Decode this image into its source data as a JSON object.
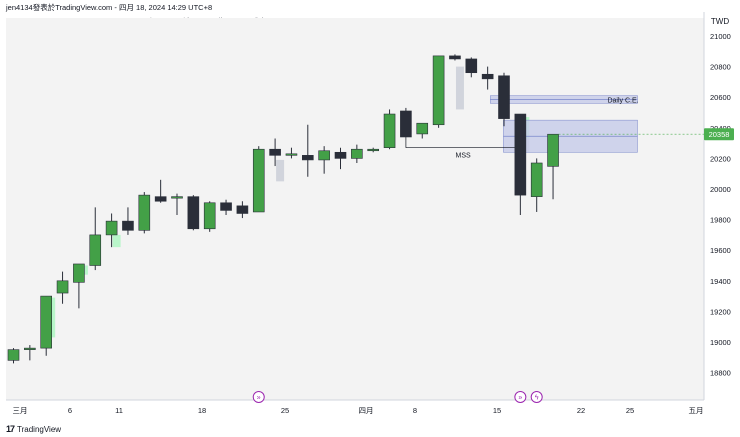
{
  "header": {
    "published": "jen4134發表於TradingView.com - 四月 18, 2024 14:29 UTC+8",
    "symbol_line": "TAIEX FUTURES, 1天, TAIFEX  開=20148  高=20359  低=19933  收=20358  成交量198.271K"
  },
  "footer": {
    "brand": "TradingView",
    "logo_icon": "tradingview-logo-icon"
  },
  "colors": {
    "up": "#43a047",
    "down": "#2a2e39",
    "fvg_bull": "#b9f6ca",
    "fvg_bear": "#d1d4dc",
    "zone": "#c5cae9",
    "zone_line": "#7986cb",
    "price_tag": "#4caf50",
    "plot_bg": "#f3f3f3"
  },
  "chart_data": {
    "type": "candlestick",
    "title": "TAIEX FUTURES, 1天, TAIFEX",
    "currency": "TWD",
    "ylim": [
      18640,
      21100
    ],
    "y_ticks": [
      18800,
      19000,
      19200,
      19400,
      19600,
      19800,
      20000,
      20200,
      20400,
      20600,
      20800,
      21000
    ],
    "x_ticks": [
      "三月",
      "6",
      "11",
      "18",
      "25",
      "四月",
      "8",
      "15",
      "22",
      "25",
      "五月"
    ],
    "last_price": "20358",
    "candles": [
      {
        "i": 0,
        "o": 18880,
        "h": 18960,
        "l": 18860,
        "c": 18950
      },
      {
        "i": 1,
        "o": 18950,
        "h": 18980,
        "l": 18880,
        "c": 18960
      },
      {
        "i": 2,
        "o": 18960,
        "h": 19300,
        "l": 18910,
        "c": 19300
      },
      {
        "i": 3,
        "o": 19320,
        "h": 19460,
        "l": 19250,
        "c": 19400
      },
      {
        "i": 4,
        "o": 19390,
        "h": 19510,
        "l": 19220,
        "c": 19510
      },
      {
        "i": 5,
        "o": 19500,
        "h": 19880,
        "l": 19470,
        "c": 19700
      },
      {
        "i": 6,
        "o": 19700,
        "h": 19840,
        "l": 19620,
        "c": 19790
      },
      {
        "i": 7,
        "o": 19790,
        "h": 19880,
        "l": 19700,
        "c": 19730
      },
      {
        "i": 8,
        "o": 19730,
        "h": 19980,
        "l": 19710,
        "c": 19960
      },
      {
        "i": 9,
        "o": 19950,
        "h": 20060,
        "l": 19910,
        "c": 19920
      },
      {
        "i": 10,
        "o": 19950,
        "h": 19970,
        "l": 19830,
        "c": 19950
      },
      {
        "i": 11,
        "o": 19950,
        "h": 19960,
        "l": 19730,
        "c": 19740
      },
      {
        "i": 12,
        "o": 19740,
        "h": 19920,
        "l": 19720,
        "c": 19910
      },
      {
        "i": 13,
        "o": 19910,
        "h": 19930,
        "l": 19830,
        "c": 19860
      },
      {
        "i": 14,
        "o": 19890,
        "h": 19920,
        "l": 19810,
        "c": 19840
      },
      {
        "i": 15,
        "o": 19850,
        "h": 20280,
        "l": 19850,
        "c": 20260
      },
      {
        "i": 16,
        "o": 20260,
        "h": 20330,
        "l": 20150,
        "c": 20220
      },
      {
        "i": 17,
        "o": 20230,
        "h": 20270,
        "l": 20200,
        "c": 20230
      },
      {
        "i": 18,
        "o": 20220,
        "h": 20420,
        "l": 20080,
        "c": 20190
      },
      {
        "i": 19,
        "o": 20190,
        "h": 20280,
        "l": 20100,
        "c": 20250
      },
      {
        "i": 20,
        "o": 20240,
        "h": 20270,
        "l": 20130,
        "c": 20200
      },
      {
        "i": 21,
        "o": 20200,
        "h": 20290,
        "l": 20170,
        "c": 20260
      },
      {
        "i": 22,
        "o": 20250,
        "h": 20270,
        "l": 20240,
        "c": 20260
      },
      {
        "i": 23,
        "o": 20270,
        "h": 20520,
        "l": 20260,
        "c": 20490
      },
      {
        "i": 24,
        "o": 20510,
        "h": 20530,
        "l": 20340,
        "c": 20340
      },
      {
        "i": 25,
        "o": 20360,
        "h": 20430,
        "l": 20330,
        "c": 20430
      },
      {
        "i": 26,
        "o": 20420,
        "h": 20870,
        "l": 20400,
        "c": 20870
      },
      {
        "i": 27,
        "o": 20870,
        "h": 20880,
        "l": 20840,
        "c": 20850
      },
      {
        "i": 28,
        "o": 20850,
        "h": 20860,
        "l": 20730,
        "c": 20760
      },
      {
        "i": 29,
        "o": 20750,
        "h": 20800,
        "l": 20650,
        "c": 20720
      },
      {
        "i": 30,
        "o": 20740,
        "h": 20760,
        "l": 20410,
        "c": 20460
      },
      {
        "i": 31,
        "o": 20490,
        "h": 20490,
        "l": 19830,
        "c": 19960
      },
      {
        "i": 32,
        "o": 19950,
        "h": 20200,
        "l": 19850,
        "c": 20170
      },
      {
        "i": 33,
        "o": 20148,
        "h": 20359,
        "l": 19933,
        "c": 20358
      }
    ],
    "fvgs": [
      {
        "i": 2,
        "lo": 19030,
        "hi": 19290,
        "kind": "bull"
      },
      {
        "i": 4,
        "lo": 19440,
        "hi": 19500,
        "kind": "bull"
      },
      {
        "i": 6,
        "lo": 19620,
        "hi": 19700,
        "kind": "bull"
      },
      {
        "i": 16,
        "lo": 20050,
        "hi": 20190,
        "kind": "bear"
      },
      {
        "i": 27,
        "lo": 20520,
        "hi": 20800,
        "kind": "bear"
      },
      {
        "i": 31,
        "lo": 20240,
        "hi": 20330,
        "kind": "bear"
      },
      {
        "i": 31,
        "lo": 20330,
        "hi": 20470,
        "kind": "bull"
      }
    ],
    "zones": [
      {
        "label": "Daily C.E.",
        "from_i": 29.5,
        "to_i": 38.5,
        "lo": 20560,
        "hi": 20610
      },
      {
        "label": "",
        "from_i": 30.3,
        "to_i": 38.5,
        "lo": 20240,
        "hi": 20450
      }
    ],
    "mss": {
      "label": "MSS",
      "from_i": 24,
      "to_i": 31,
      "y": 20270,
      "anchor_y": 20350
    },
    "markers": [
      {
        "i": 15,
        "kind": "arrow"
      },
      {
        "i": 31,
        "kind": "arrow"
      },
      {
        "i": 32,
        "kind": "bolt"
      }
    ]
  }
}
